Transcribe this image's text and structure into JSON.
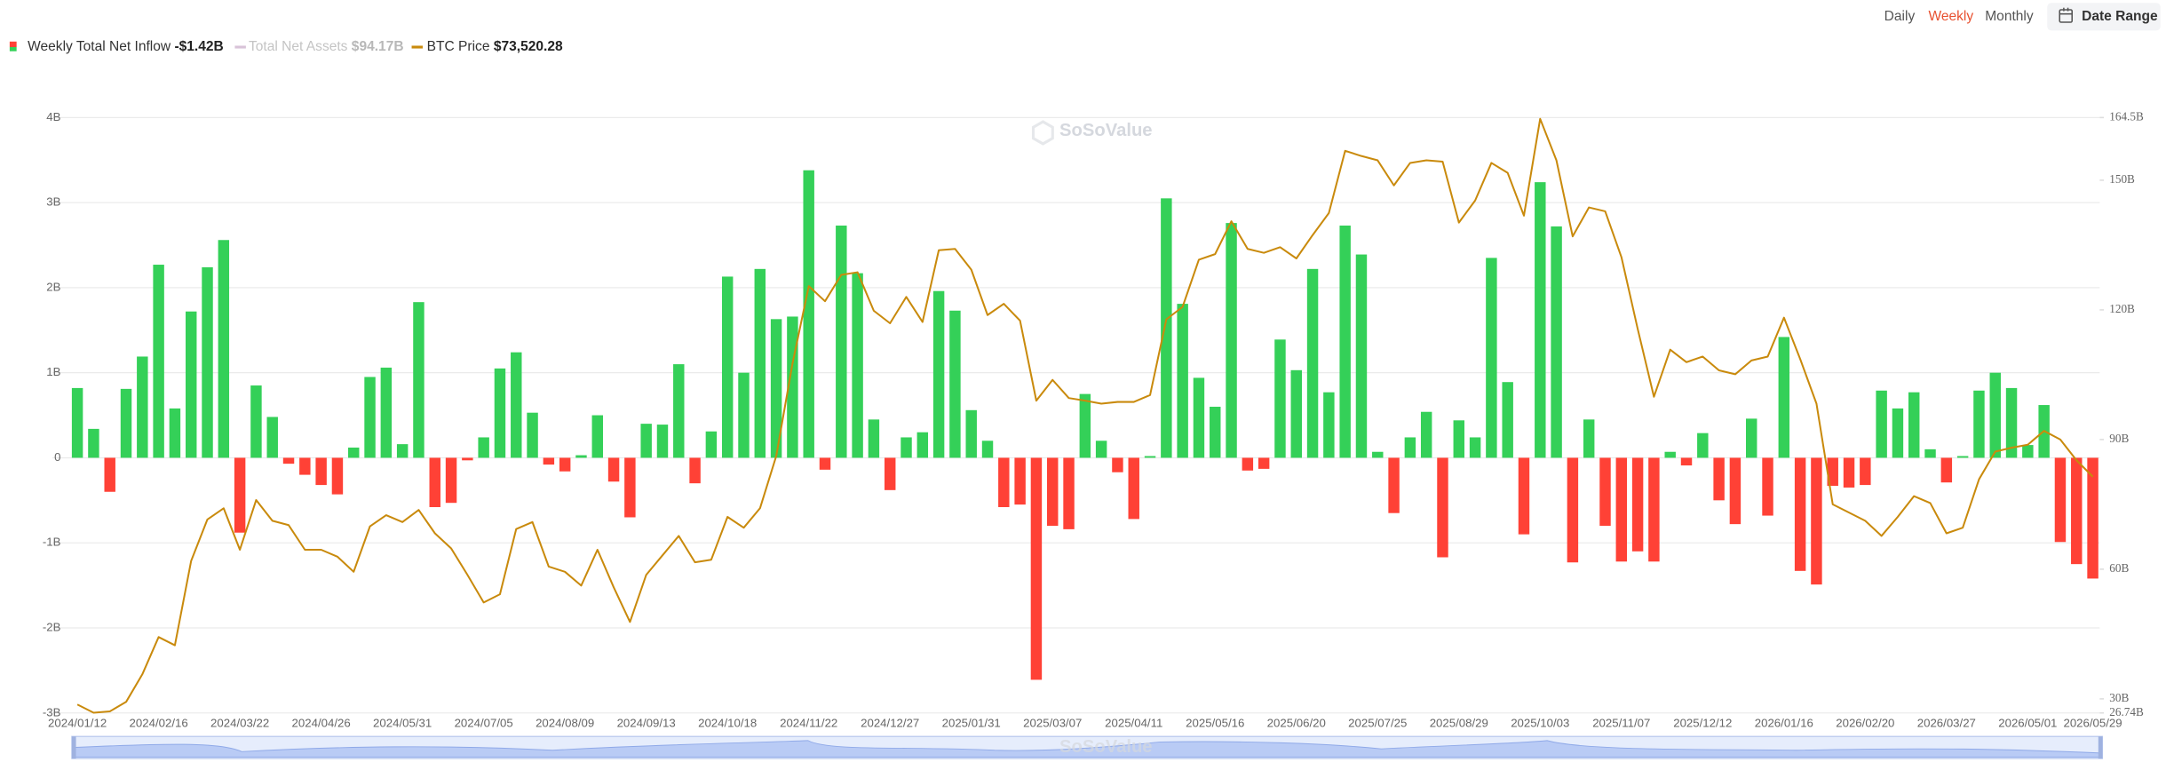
{
  "chart_data": {
    "type": "bar_line",
    "watermark": "SoSoValue",
    "period_options": [
      "Daily",
      "Weekly",
      "Monthly"
    ],
    "active_period_index": 1,
    "date_range_label": "Date Range",
    "categories": [
      "2024/01/12",
      null,
      null,
      null,
      null,
      "2024/02/16",
      null,
      null,
      null,
      null,
      "2024/03/22",
      null,
      null,
      null,
      null,
      "2024/04/26",
      null,
      null,
      null,
      null,
      "2024/05/31",
      null,
      null,
      null,
      null,
      "2024/07/05",
      null,
      null,
      null,
      null,
      "2024/08/09",
      null,
      null,
      null,
      null,
      "2024/09/13",
      null,
      null,
      null,
      null,
      "2024/10/18",
      null,
      null,
      null,
      null,
      "2024/11/22",
      null,
      null,
      null,
      null,
      "2024/12/27",
      null,
      null,
      null,
      null,
      "2025/01/31",
      null,
      null,
      null,
      null,
      "2025/03/07",
      null,
      null,
      null,
      null,
      "2025/04/11",
      null,
      null,
      null,
      null,
      "2025/05/16",
      null,
      null,
      null,
      null,
      "2025/06/20",
      null,
      null,
      null,
      null,
      "2025/07/25",
      null,
      null,
      null,
      null,
      "2025/08/29",
      null,
      null,
      null,
      null,
      "2025/10/03",
      null,
      null,
      null,
      null,
      "2025/11/07",
      null,
      null,
      null,
      null,
      "2025/12/12",
      null,
      null,
      null,
      null,
      "2026/01/16",
      null,
      null,
      null,
      null,
      "2026/02/20",
      null,
      null,
      null,
      null,
      "2026/03/27",
      null,
      null,
      null,
      null,
      "2026/05/01",
      null,
      null,
      null,
      "2026/05/29"
    ],
    "ylim": [
      -3,
      4
    ],
    "yticks": [
      {
        "value": 4,
        "label": "4B"
      },
      {
        "value": 3,
        "label": "3B"
      },
      {
        "value": 2,
        "label": "2B"
      },
      {
        "value": 1,
        "label": "1B"
      },
      0,
      {
        "value": -1,
        "label": "-1B"
      },
      {
        "value": -2,
        "label": "-2B"
      },
      {
        "value": -3,
        "label": "-3B"
      }
    ],
    "y2lim": [
      26.74,
      164.5
    ],
    "y2ticks": [
      {
        "value": 164.5,
        "label": "164.5B"
      },
      {
        "value": 150,
        "label": "150B"
      },
      {
        "value": 120,
        "label": "120B"
      },
      {
        "value": 90,
        "label": "90B"
      },
      {
        "value": 60,
        "label": "60B"
      },
      {
        "value": 30,
        "label": "30B"
      },
      {
        "value": 26.74,
        "label": "26.74B"
      }
    ],
    "grid": true,
    "series": [
      {
        "name": "Weekly Total Net Inflow",
        "latest_label": "-$1.42B",
        "positive_color": "#34d058",
        "negative_color": "#ff4136",
        "values": [
          0.82,
          0.34,
          -0.4,
          0.81,
          1.19,
          2.27,
          0.58,
          1.72,
          2.24,
          2.56,
          -0.88,
          0.85,
          0.48,
          -0.07,
          -0.2,
          -0.32,
          -0.43,
          0.12,
          0.95,
          1.06,
          0.16,
          1.83,
          -0.58,
          -0.53,
          -0.03,
          0.24,
          1.05,
          1.24,
          0.53,
          -0.08,
          -0.16,
          0.03,
          0.5,
          -0.28,
          -0.7,
          0.4,
          0.39,
          1.1,
          -0.3,
          0.31,
          2.13,
          1.0,
          2.22,
          1.63,
          1.66,
          3.38,
          -0.14,
          2.73,
          2.17,
          0.45,
          -0.38,
          0.24,
          0.3,
          1.96,
          1.73,
          0.56,
          0.2,
          -0.58,
          -0.55,
          -2.61,
          -0.8,
          -0.84,
          0.75,
          0.2,
          -0.17,
          -0.72,
          0.02,
          3.05,
          1.81,
          0.94,
          0.6,
          2.76,
          -0.15,
          -0.13,
          1.39,
          1.03,
          2.22,
          0.77,
          2.73,
          2.39,
          0.07,
          -0.65,
          0.24,
          0.54,
          -1.17,
          0.44,
          0.24,
          2.35,
          0.89,
          -0.9,
          3.24,
          2.72,
          -1.23,
          0.45,
          -0.8,
          -1.22,
          -1.1,
          -1.22,
          0.07,
          -0.09,
          0.29,
          -0.5,
          -0.78,
          0.46,
          -0.68,
          1.42,
          -1.33,
          -1.49,
          -0.33,
          -0.35,
          -0.32,
          0.79,
          0.58,
          0.77,
          0.1,
          -0.29,
          0.02,
          0.79,
          1.0,
          0.82,
          0.15,
          0.62,
          -0.99,
          -1.25,
          -1.42
        ]
      },
      {
        "name": "Total Net Assets",
        "latest_label": "$94.17B",
        "color": "#d8c3d8",
        "hidden": true
      },
      {
        "name": "BTC Price",
        "latest_label": "$73,520.28",
        "color": "#c98a0c",
        "axis": "y2",
        "values": [
          28.7,
          26.8,
          27.1,
          29.3,
          35.7,
          44.3,
          42.4,
          61.9,
          71.5,
          74.1,
          64.5,
          76.0,
          71.2,
          70.2,
          64.5,
          64.5,
          62.9,
          59.4,
          69.9,
          72.5,
          70.9,
          73.7,
          68.3,
          64.8,
          58.7,
          52.3,
          54.2,
          69.3,
          70.9,
          60.6,
          59.4,
          56.2,
          64.5,
          55.8,
          47.8,
          58.7,
          63.2,
          67.7,
          61.6,
          62.2,
          72.1,
          69.6,
          74.1,
          86.2,
          107.6,
          125.5,
          122.0,
          128.1,
          128.7,
          119.8,
          116.9,
          123.0,
          117.2,
          133.8,
          134.1,
          129.3,
          118.8,
          121.4,
          117.5,
          99.0,
          103.8,
          99.6,
          99.0,
          98.3,
          98.7,
          98.7,
          100.3,
          117.8,
          120.7,
          131.6,
          132.9,
          140.5,
          134.1,
          133.2,
          134.5,
          131.9,
          137.3,
          142.4,
          156.8,
          155.6,
          154.6,
          148.8,
          154.0,
          154.6,
          154.3,
          140.2,
          145.3,
          154.0,
          151.7,
          141.8,
          164.2,
          154.6,
          137.0,
          143.7,
          142.8,
          132.2,
          115.6,
          99.9,
          110.8,
          107.9,
          109.2,
          106.0,
          105.1,
          108.3,
          109.2,
          118.2,
          108.6,
          98.3,
          75.0,
          73.1,
          71.2,
          67.7,
          72.1,
          76.9,
          75.3,
          68.3,
          69.6,
          80.8,
          87.2,
          88.1,
          88.8,
          92.0,
          90.0,
          85.2,
          81.4
        ]
      }
    ]
  }
}
